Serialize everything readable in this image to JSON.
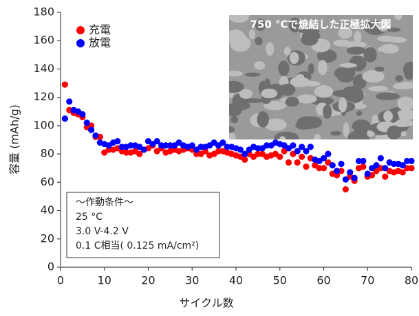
{
  "chart_data": {
    "type": "scatter",
    "xlabel": "サイクル数",
    "ylabel": "容量 (mAh/g)",
    "xlim": [
      0,
      80
    ],
    "xticks": [
      0,
      10,
      20,
      30,
      40,
      50,
      60,
      70,
      80
    ],
    "ylim": [
      0,
      180
    ],
    "yticks": [
      0,
      20,
      40,
      60,
      80,
      100,
      120,
      140,
      160,
      180
    ],
    "x": [
      1,
      2,
      3,
      4,
      5,
      6,
      7,
      8,
      9,
      10,
      11,
      12,
      13,
      14,
      15,
      16,
      17,
      18,
      19,
      20,
      21,
      22,
      23,
      24,
      25,
      26,
      27,
      28,
      29,
      30,
      31,
      32,
      33,
      34,
      35,
      36,
      37,
      38,
      39,
      40,
      41,
      42,
      43,
      44,
      45,
      46,
      47,
      48,
      49,
      50,
      51,
      52,
      53,
      54,
      55,
      56,
      57,
      58,
      59,
      60,
      61,
      62,
      63,
      64,
      65,
      66,
      67,
      68,
      69,
      70,
      71,
      72,
      73,
      74,
      75,
      76,
      77,
      78,
      79,
      80
    ],
    "series": [
      {
        "name": "充電",
        "color": "#ff0000",
        "values": [
          129,
          111,
          109,
          108,
          106,
          99,
          100,
          92,
          92,
          81,
          83,
          83,
          84,
          82,
          81,
          81,
          82,
          80,
          83,
          84,
          86,
          82,
          84,
          81,
          82,
          83,
          82,
          83,
          84,
          83,
          80,
          80,
          82,
          79,
          80,
          82,
          82,
          81,
          80,
          79,
          78,
          76,
          80,
          78,
          80,
          80,
          78,
          79,
          80,
          78,
          82,
          74,
          80,
          74,
          78,
          71,
          77,
          72,
          70,
          70,
          74,
          66,
          65,
          68,
          55,
          64,
          61,
          70,
          71,
          64,
          65,
          68,
          70,
          64,
          68,
          67,
          68,
          67,
          70,
          70
        ]
      },
      {
        "name": "放電",
        "color": "#0000ff",
        "values": [
          105,
          117,
          111,
          110,
          108,
          102,
          97,
          93,
          88,
          87,
          86,
          88,
          89,
          85,
          85,
          86,
          86,
          85,
          83,
          89,
          87,
          89,
          86,
          86,
          86,
          86,
          88,
          86,
          85,
          86,
          83,
          85,
          85,
          86,
          88,
          86,
          88,
          85,
          85,
          84,
          83,
          80,
          83,
          85,
          84,
          84,
          86,
          86,
          88,
          87,
          86,
          84,
          86,
          82,
          85,
          82,
          85,
          76,
          75,
          77,
          80,
          72,
          68,
          73,
          62,
          67,
          63,
          75,
          75,
          66,
          70,
          72,
          77,
          70,
          74,
          73,
          73,
          72,
          75,
          75
        ]
      }
    ],
    "annotations": {
      "inset_title": "750 °Cで焼結した正極拡大図",
      "conditions": [
        "〜作動条件〜",
        "25 °C",
        "3.0 V-4.2 V",
        "0.1 C相当( 0.125 mA/cm²)"
      ]
    }
  }
}
